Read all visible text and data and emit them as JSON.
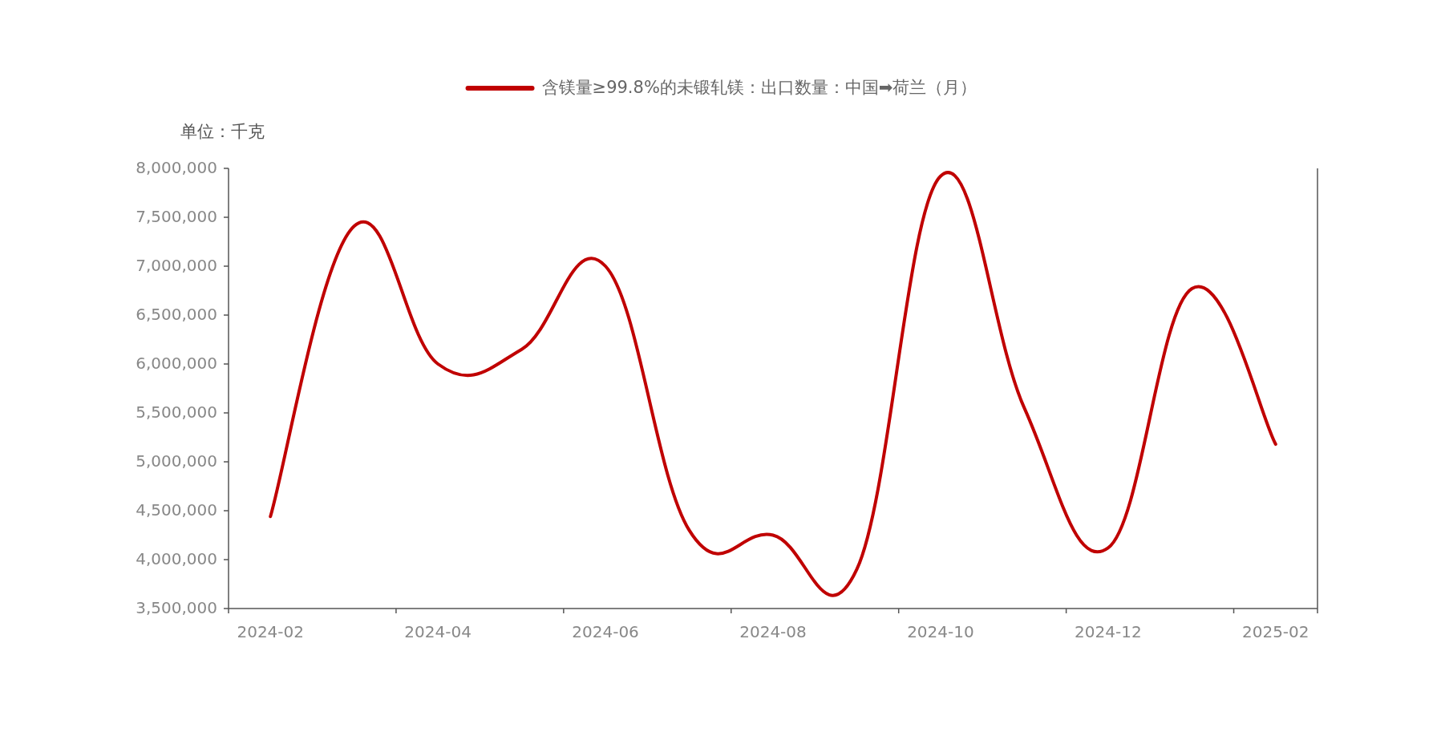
{
  "chart_data": {
    "type": "line",
    "ylabel": "单位：千克",
    "categories": [
      "2024-02",
      null,
      "2024-04",
      null,
      "2024-06",
      null,
      "2024-08",
      null,
      "2024-10",
      null,
      "2024-12",
      null,
      "2025-02"
    ],
    "series": [
      {
        "name": "含镁量≥99.8%的未锻轧镁：出口数量：中国➡荷兰（月）",
        "color": "#c00000",
        "values": [
          4440000,
          7410000,
          6000000,
          6150000,
          7000000,
          4300000,
          4250000,
          3900000,
          7920000,
          5550000,
          4120000,
          6770000,
          5180000
        ]
      }
    ],
    "ylim": [
      3500000,
      8000000
    ],
    "yticks": [
      {
        "value": 3500000,
        "label": "3,500,000"
      },
      {
        "value": 4000000,
        "label": "4,000,000"
      },
      {
        "value": 4500000,
        "label": "4,500,000"
      },
      {
        "value": 5000000,
        "label": "5,000,000"
      },
      {
        "value": 5500000,
        "label": "5,500,000"
      },
      {
        "value": 6000000,
        "label": "6,000,000"
      },
      {
        "value": 6500000,
        "label": "6,500,000"
      },
      {
        "value": 7000000,
        "label": "7,000,000"
      },
      {
        "value": 7500000,
        "label": "7,500,000"
      },
      {
        "value": 8000000,
        "label": "8,000,000"
      }
    ],
    "legend": "top",
    "grid": false
  }
}
